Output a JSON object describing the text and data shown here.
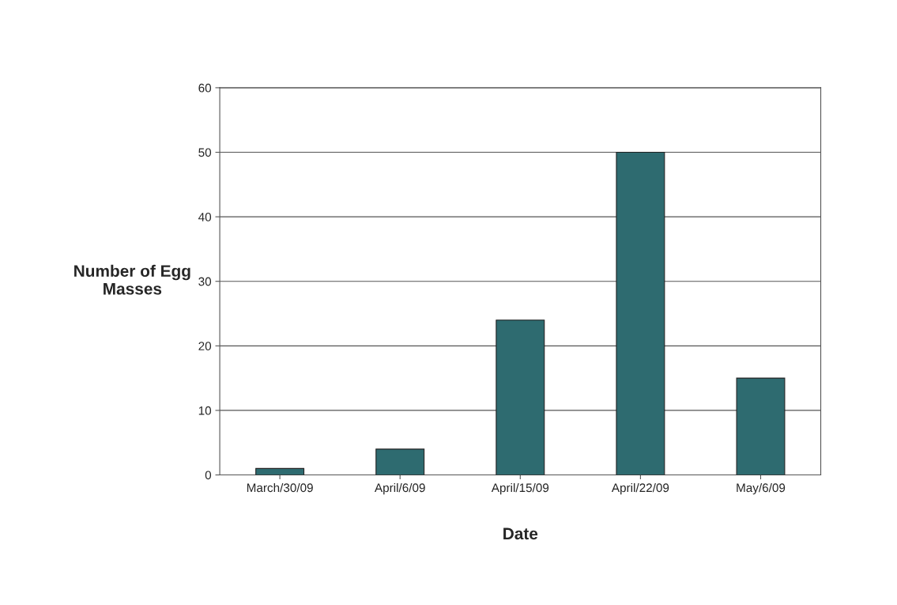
{
  "chart_data": {
    "type": "bar",
    "xlabel": "Date",
    "ylabel": "Number of Egg\nMasses",
    "categories": [
      "March/30/09",
      "April/6/09",
      "April/15/09",
      "April/22/09",
      "May/6/09"
    ],
    "values": [
      1,
      4,
      24,
      50,
      15
    ],
    "color": "#2e6b70",
    "ylim": [
      0,
      60
    ],
    "yticks": [
      0,
      10,
      20,
      30,
      40,
      50,
      60
    ],
    "grid": "y"
  }
}
